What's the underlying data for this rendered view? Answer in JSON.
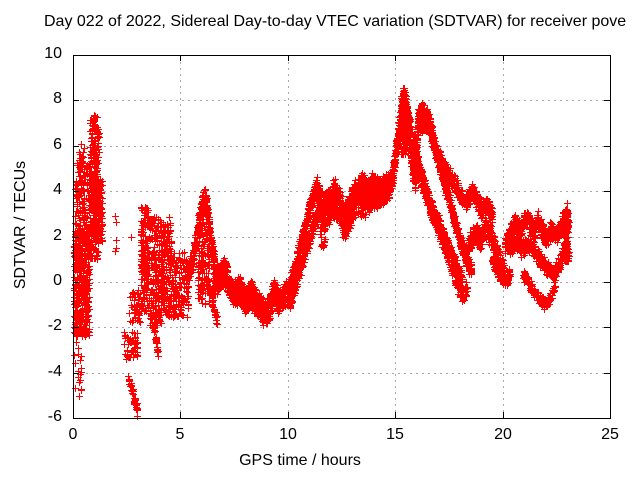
{
  "chart_data": {
    "type": "scatter",
    "title": "Day 022 of 2022, Sidereal Day-to-day VTEC variation (SDTVAR) for receiver pove",
    "xlabel": "GPS time / hours",
    "ylabel": "SDTVAR / TECUs",
    "xlim": [
      0,
      25
    ],
    "ylim": [
      -6,
      10
    ],
    "xticks": [
      0,
      5,
      10,
      15,
      20,
      25
    ],
    "yticks": [
      -6,
      -4,
      -2,
      0,
      2,
      4,
      6,
      8,
      10
    ],
    "grid": {
      "show": true,
      "style": "dashed",
      "color": "#a8a8a8"
    },
    "border_color": "#000000",
    "background": "#ffffff",
    "marker": "plus",
    "marker_color": "#ff0000",
    "marker_size_px": 7,
    "seed": 20220122,
    "traces": [
      {
        "kind": "points",
        "pts": [
          [
            1.95,
            2.9
          ],
          [
            1.98,
            2.65
          ],
          [
            2.0,
            1.85
          ],
          [
            2.02,
            1.5
          ],
          [
            1.97,
            1.35
          ],
          [
            2.68,
            2.0
          ],
          [
            4.45,
            2.85
          ],
          [
            4.5,
            2.6
          ],
          [
            4.48,
            1.6
          ],
          [
            4.55,
            1.35
          ],
          [
            4.42,
            1.2
          ]
        ]
      },
      {
        "kind": "cluster",
        "x": [
          0.05,
          0.4
        ],
        "y": [
          -5.4,
          -2.6
        ],
        "n": 18
      },
      {
        "kind": "cluster",
        "x": [
          0.05,
          0.75
        ],
        "y": [
          -2.4,
          2.2
        ],
        "n": 380
      },
      {
        "kind": "cluster",
        "x": [
          0.1,
          0.85
        ],
        "y": [
          2.2,
          5.3
        ],
        "n": 150
      },
      {
        "kind": "cluster",
        "x": [
          0.28,
          0.5
        ],
        "y": [
          5.2,
          6.1
        ],
        "n": 14
      },
      {
        "kind": "cluster",
        "x": [
          0.8,
          1.2
        ],
        "y": [
          1.0,
          7.35
        ],
        "n": 280
      },
      {
        "kind": "cluster",
        "x": [
          1.05,
          1.38
        ],
        "y": [
          1.8,
          4.6
        ],
        "n": 110
      },
      {
        "kind": "cluster",
        "x": [
          2.35,
          3.0
        ],
        "y": [
          -3.4,
          -2.2
        ],
        "n": 55
      },
      {
        "kind": "band",
        "pts": [
          [
            2.55,
            -4.1
          ],
          [
            3.0,
            -5.65
          ]
        ],
        "spread": 0.28,
        "n": 42
      },
      {
        "kind": "cluster",
        "x": [
          2.6,
          3.15
        ],
        "y": [
          -1.8,
          -0.3
        ],
        "n": 40
      },
      {
        "kind": "cluster",
        "x": [
          3.15,
          3.55
        ],
        "y": [
          -1.3,
          3.35
        ],
        "n": 170
      },
      {
        "kind": "cluster",
        "x": [
          3.55,
          4.15
        ],
        "y": [
          -2.0,
          2.9
        ],
        "n": 200
      },
      {
        "kind": "band",
        "pts": [
          [
            3.75,
            -1.9
          ],
          [
            3.98,
            -3.3
          ]
        ],
        "spread": 0.2,
        "n": 28
      },
      {
        "kind": "cluster",
        "x": [
          4.1,
          4.55
        ],
        "y": [
          -1.5,
          2.6
        ],
        "n": 150
      },
      {
        "kind": "cluster",
        "x": [
          4.55,
          5.35
        ],
        "y": [
          -1.6,
          1.3
        ],
        "n": 150
      },
      {
        "kind": "band",
        "pts": [
          [
            5.35,
            0.3
          ],
          [
            5.6,
            1.2
          ],
          [
            5.85,
            2.5
          ],
          [
            6.0,
            3.5
          ],
          [
            6.15,
            3.7
          ],
          [
            6.3,
            2.8
          ],
          [
            6.45,
            1.6
          ],
          [
            6.6,
            0.7
          ]
        ],
        "spread": 0.5,
        "n": 300
      },
      {
        "kind": "cluster",
        "x": [
          5.8,
          6.35
        ],
        "y": [
          -1.0,
          3.3
        ],
        "n": 140
      },
      {
        "kind": "band",
        "pts": [
          [
            6.35,
            -0.2
          ],
          [
            6.7,
            -1.75
          ]
        ],
        "spread": 0.3,
        "n": 40
      },
      {
        "kind": "band",
        "pts": [
          [
            6.5,
            0.25
          ],
          [
            6.8,
            0.6
          ],
          [
            7.05,
            0.8
          ],
          [
            7.25,
            0.15
          ],
          [
            7.5,
            -0.25
          ],
          [
            7.75,
            -0.1
          ],
          [
            8.0,
            -0.55
          ],
          [
            8.3,
            -0.3
          ],
          [
            8.6,
            -0.8
          ],
          [
            8.9,
            -1.1
          ],
          [
            9.15,
            -0.9
          ],
          [
            9.35,
            -0.15
          ],
          [
            9.55,
            -0.65
          ],
          [
            9.75,
            -0.5
          ],
          [
            9.95,
            -0.15
          ]
        ],
        "spread": 0.35,
        "n": 420
      },
      {
        "kind": "band",
        "pts": [
          [
            6.5,
            -0.25
          ],
          [
            6.8,
            -0.1
          ],
          [
            7.05,
            0.3
          ],
          [
            7.25,
            -0.35
          ],
          [
            7.5,
            -0.75
          ],
          [
            7.75,
            -0.6
          ],
          [
            8.0,
            -1.05
          ],
          [
            8.3,
            -0.8
          ],
          [
            8.6,
            -1.3
          ],
          [
            8.9,
            -1.6
          ],
          [
            9.15,
            -1.4
          ],
          [
            9.35,
            -0.65
          ],
          [
            9.55,
            -1.15
          ],
          [
            9.75,
            -1.0
          ],
          [
            9.95,
            -0.65
          ]
        ],
        "spread": 0.35,
        "n": 420
      },
      {
        "kind": "band",
        "pts": [
          [
            9.95,
            -0.6
          ],
          [
            10.2,
            0.2
          ],
          [
            10.5,
            1.3
          ],
          [
            10.8,
            2.4
          ],
          [
            11.0,
            3.2
          ],
          [
            11.2,
            3.9
          ],
          [
            11.35,
            4.2
          ]
        ],
        "spread": 0.45,
        "n": 300
      },
      {
        "kind": "band",
        "pts": [
          [
            10.1,
            -0.9
          ],
          [
            10.5,
            0.4
          ],
          [
            10.9,
            1.6
          ],
          [
            11.2,
            2.6
          ],
          [
            11.5,
            3.3
          ]
        ],
        "spread": 0.4,
        "n": 220
      },
      {
        "kind": "band",
        "pts": [
          [
            11.35,
            4.2
          ],
          [
            11.6,
            3.3
          ],
          [
            11.9,
            3.6
          ],
          [
            12.15,
            4.1
          ],
          [
            12.4,
            3.6
          ],
          [
            12.65,
            3.1
          ],
          [
            12.9,
            3.5
          ],
          [
            13.1,
            3.9
          ],
          [
            13.4,
            4.4
          ],
          [
            13.7,
            4.0
          ],
          [
            14.0,
            4.35
          ],
          [
            14.3,
            4.1
          ],
          [
            14.6,
            4.3
          ],
          [
            14.85,
            4.5
          ]
        ],
        "spread": 0.5,
        "n": 750
      },
      {
        "kind": "band",
        "pts": [
          [
            11.5,
            2.4
          ],
          [
            11.8,
            2.9
          ],
          [
            12.1,
            3.3
          ],
          [
            12.4,
            2.8
          ],
          [
            12.7,
            2.4
          ],
          [
            13.0,
            3.0
          ],
          [
            13.3,
            3.5
          ],
          [
            13.6,
            3.2
          ],
          [
            13.9,
            3.7
          ],
          [
            14.2,
            3.5
          ],
          [
            14.5,
            3.9
          ],
          [
            14.8,
            4.2
          ]
        ],
        "spread": 0.45,
        "n": 430
      },
      {
        "kind": "cluster",
        "x": [
          11.5,
          11.75
        ],
        "y": [
          1.5,
          4.0
        ],
        "n": 50
      },
      {
        "kind": "cluster",
        "x": [
          12.55,
          12.78
        ],
        "y": [
          1.9,
          3.4
        ],
        "n": 45
      },
      {
        "kind": "band",
        "pts": [
          [
            14.85,
            4.5
          ],
          [
            15.0,
            5.5
          ],
          [
            15.15,
            6.6
          ],
          [
            15.3,
            7.7
          ],
          [
            15.4,
            8.3
          ],
          [
            15.5,
            7.6
          ],
          [
            15.65,
            6.4
          ],
          [
            15.8,
            5.2
          ],
          [
            15.95,
            4.4
          ]
        ],
        "spread": 0.45,
        "n": 380
      },
      {
        "kind": "cluster",
        "x": [
          15.25,
          15.5
        ],
        "y": [
          5.6,
          8.25
        ],
        "n": 110
      },
      {
        "kind": "band",
        "pts": [
          [
            15.85,
            4.9
          ],
          [
            16.0,
            6.2
          ],
          [
            16.1,
            7.2
          ],
          [
            16.25,
            7.5
          ],
          [
            16.45,
            7.2
          ],
          [
            16.6,
            6.9
          ],
          [
            16.75,
            6.3
          ]
        ],
        "spread": 0.45,
        "n": 300
      },
      {
        "kind": "cluster",
        "x": [
          16.05,
          16.5
        ],
        "y": [
          6.6,
          7.65
        ],
        "n": 90
      },
      {
        "kind": "band",
        "pts": [
          [
            15.5,
            7.8
          ],
          [
            15.9,
            5.9
          ],
          [
            16.3,
            4.4
          ],
          [
            16.7,
            3.3
          ],
          [
            17.0,
            2.6
          ],
          [
            17.3,
            1.9
          ],
          [
            17.6,
            1.2
          ],
          [
            17.9,
            0.6
          ],
          [
            18.1,
            0.2
          ]
        ],
        "spread": 0.35,
        "n": 360
      },
      {
        "kind": "band",
        "pts": [
          [
            16.75,
            6.2
          ],
          [
            17.1,
            5.0
          ],
          [
            17.45,
            3.8
          ],
          [
            17.8,
            2.6
          ],
          [
            18.1,
            1.6
          ],
          [
            18.35,
            0.9
          ],
          [
            18.55,
            0.55
          ]
        ],
        "spread": 0.35,
        "n": 340
      },
      {
        "kind": "band",
        "pts": [
          [
            16.2,
            4.4
          ],
          [
            16.6,
            3.3
          ],
          [
            17.0,
            2.3
          ],
          [
            17.4,
            1.3
          ],
          [
            17.7,
            0.4
          ],
          [
            17.95,
            -0.3
          ],
          [
            18.15,
            -0.6
          ],
          [
            18.35,
            -0.25
          ]
        ],
        "spread": 0.3,
        "n": 280
      },
      {
        "kind": "band",
        "pts": [
          [
            16.9,
            5.8
          ],
          [
            17.3,
            5.0
          ],
          [
            17.7,
            4.4
          ],
          [
            18.0,
            3.8
          ],
          [
            18.3,
            3.5
          ],
          [
            18.55,
            4.0
          ],
          [
            18.8,
            3.6
          ],
          [
            19.05,
            3.2
          ],
          [
            19.3,
            3.45
          ],
          [
            19.5,
            2.9
          ]
        ],
        "spread": 0.4,
        "n": 400
      },
      {
        "kind": "band",
        "pts": [
          [
            18.4,
            1.6
          ],
          [
            18.7,
            2.2
          ],
          [
            18.95,
            1.9
          ],
          [
            19.2,
            2.4
          ],
          [
            19.45,
            2.0
          ],
          [
            19.7,
            1.4
          ],
          [
            19.9,
            0.8
          ],
          [
            20.1,
            0.5
          ]
        ],
        "spread": 0.45,
        "n": 310
      },
      {
        "kind": "band",
        "pts": [
          [
            19.5,
            1.0
          ],
          [
            19.75,
            0.55
          ],
          [
            19.95,
            0.15
          ],
          [
            20.15,
            0.05
          ],
          [
            20.35,
            0.45
          ]
        ],
        "spread": 0.3,
        "n": 130
      },
      {
        "kind": "band",
        "pts": [
          [
            20.1,
            1.5
          ],
          [
            20.35,
            2.2
          ],
          [
            20.6,
            2.6
          ],
          [
            20.85,
            2.3
          ],
          [
            21.05,
            2.9
          ],
          [
            21.25,
            2.5
          ],
          [
            21.45,
            2.1
          ],
          [
            21.65,
            2.7
          ],
          [
            21.85,
            2.2
          ],
          [
            22.05,
            1.9
          ],
          [
            22.25,
            2.3
          ],
          [
            22.5,
            2.0
          ],
          [
            22.7,
            2.4
          ],
          [
            22.9,
            2.8
          ],
          [
            23.0,
            3.1
          ]
        ],
        "spread": 0.4,
        "n": 520
      },
      {
        "kind": "band",
        "pts": [
          [
            20.3,
            1.4
          ],
          [
            20.6,
            1.8
          ],
          [
            20.9,
            1.4
          ],
          [
            21.2,
            1.7
          ],
          [
            21.5,
            1.3
          ],
          [
            21.8,
            0.9
          ],
          [
            22.1,
            0.6
          ],
          [
            22.35,
            0.3
          ],
          [
            22.6,
            0.7
          ],
          [
            22.8,
            1.2
          ],
          [
            23.0,
            1.8
          ]
        ],
        "spread": 0.35,
        "n": 360
      },
      {
        "kind": "band",
        "pts": [
          [
            20.95,
            0.35
          ],
          [
            21.3,
            -0.25
          ],
          [
            21.7,
            -0.75
          ],
          [
            22.0,
            -1.0
          ],
          [
            22.25,
            -0.6
          ],
          [
            22.45,
            -0.1
          ]
        ],
        "spread": 0.25,
        "n": 170
      },
      {
        "kind": "cluster",
        "x": [
          22.85,
          23.08
        ],
        "y": [
          0.9,
          3.2
        ],
        "n": 110
      }
    ]
  }
}
